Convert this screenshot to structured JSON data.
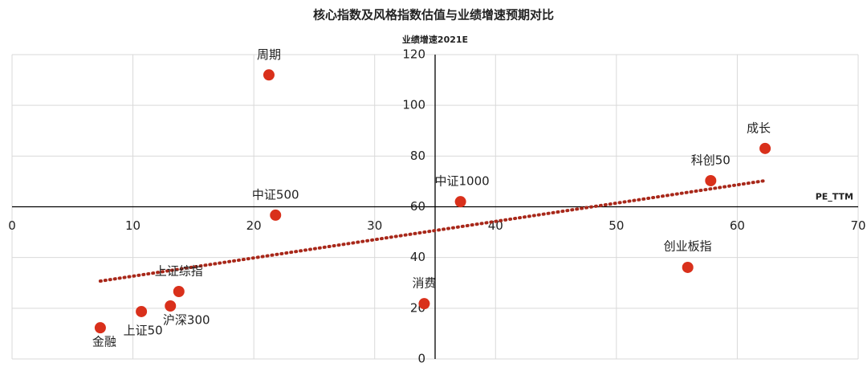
{
  "chart_data": {
    "type": "scatter",
    "title": "核心指数及风格指数估值与业绩增速预期对比",
    "x_label": "PE_TTM",
    "y_label": "业绩增速2021E",
    "labels": [
      "周期",
      "成长",
      "科创50",
      "中证1000",
      "中证500",
      "创业板指",
      "上证综指",
      "消费",
      "沪深300",
      "上证50",
      "金融"
    ],
    "x": [
      21.25,
      62.3,
      57.8,
      37.1,
      21.8,
      55.9,
      13.8,
      34.1,
      13.1,
      10.7,
      7.3
    ],
    "y": [
      112,
      83,
      70.3,
      62,
      56.7,
      36.1,
      26.6,
      21.8,
      20.9,
      18.7,
      12.3
    ],
    "color": "#d9301b",
    "trendline": {
      "x": [
        7.3,
        62.3
      ],
      "y": [
        30.7,
        70.3
      ],
      "color": "#a8281a"
    },
    "xlim": [
      0,
      70
    ],
    "ylim": [
      0,
      120
    ],
    "xticks": [
      0,
      10,
      20,
      30,
      40,
      50,
      60,
      70
    ],
    "yticks": [
      0,
      20,
      40,
      60,
      80,
      100,
      120
    ],
    "x_axis_at": 60,
    "y_axis_at": 35,
    "grid": true
  }
}
